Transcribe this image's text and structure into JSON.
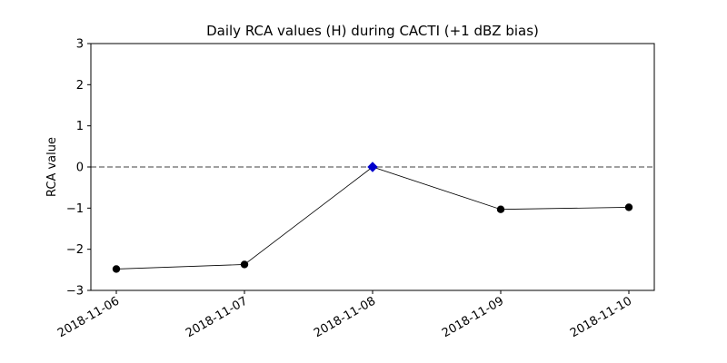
{
  "chart_data": {
    "type": "line",
    "title": "Daily RCA values (H) during CACTI (+1 dBZ bias)",
    "xlabel": "",
    "ylabel": "RCA value",
    "x": [
      "2018-11-06",
      "2018-11-07",
      "2018-11-08",
      "2018-11-09",
      "2018-11-10"
    ],
    "values": [
      -2.48,
      -2.37,
      0.0,
      -1.03,
      -0.98
    ],
    "marker_styles": [
      "circle",
      "circle",
      "diamond",
      "circle",
      "circle"
    ],
    "marker_colors": [
      "#000000",
      "#000000",
      "#0000cc",
      "#000000",
      "#000000"
    ],
    "line_color": "#000000",
    "reference_line": {
      "y": 0,
      "style": "dashed",
      "color": "#808080"
    },
    "ylim": [
      -3,
      3
    ],
    "yticks": [
      3,
      2,
      1,
      0,
      -1,
      -2,
      -3
    ],
    "ytick_labels": [
      "3",
      "2",
      "1",
      "0",
      "−1",
      "−2",
      "−3"
    ],
    "grid": false,
    "legend": "none"
  }
}
